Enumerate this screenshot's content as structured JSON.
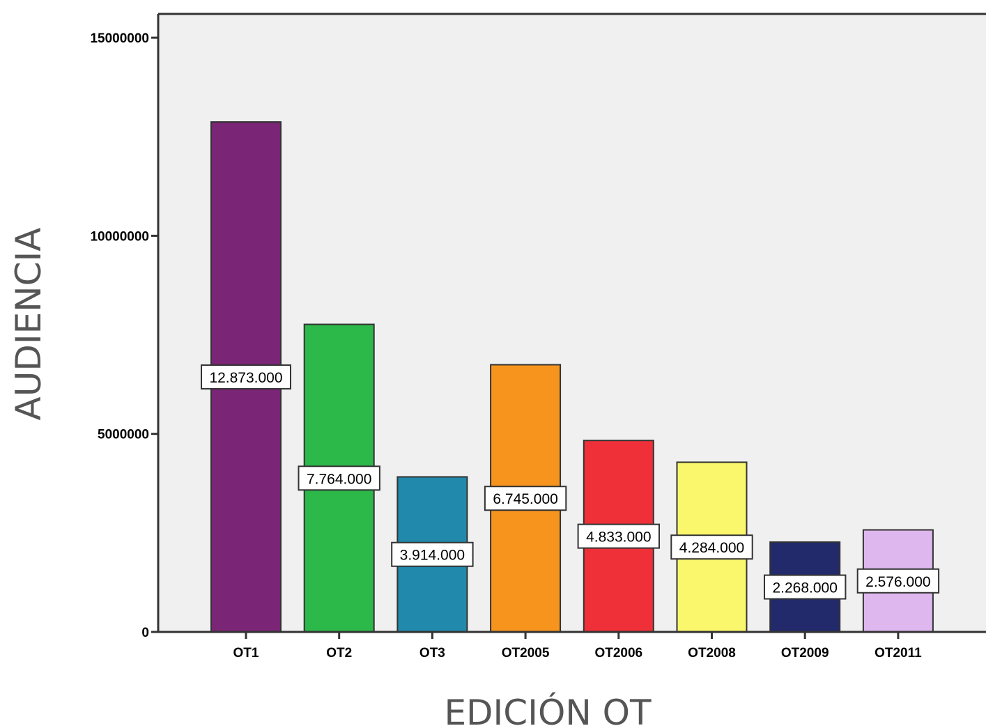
{
  "chart_data": {
    "type": "bar",
    "title": "",
    "xlabel": "EDICIÓN OT",
    "ylabel": "AUDIENCIA",
    "categories": [
      "OT1",
      "OT2",
      "OT3",
      "OT2005",
      "OT2006",
      "OT2008",
      "OT2009",
      "OT2011"
    ],
    "values": [
      12873000,
      7764000,
      3914000,
      6745000,
      4833000,
      4284000,
      2268000,
      2576000
    ],
    "data_labels": [
      "12.873.000",
      "7.764.000",
      "3.914.000",
      "6.745.000",
      "4.833.000",
      "4.284.000",
      "2.268.000",
      "2.576.000"
    ],
    "colors": [
      "#7b2576",
      "#2db84a",
      "#2189ab",
      "#f7941d",
      "#ef3038",
      "#fbf76c",
      "#232a6c",
      "#dfb7ef"
    ],
    "ylim": [
      0,
      15600000
    ],
    "yticks": [
      0,
      5000000,
      10000000,
      15000000
    ],
    "ytick_labels": [
      "0",
      "5000000",
      "10000000",
      "15000000"
    ],
    "plot_background": "#f0f0f0",
    "grid": false,
    "legend": "none"
  }
}
